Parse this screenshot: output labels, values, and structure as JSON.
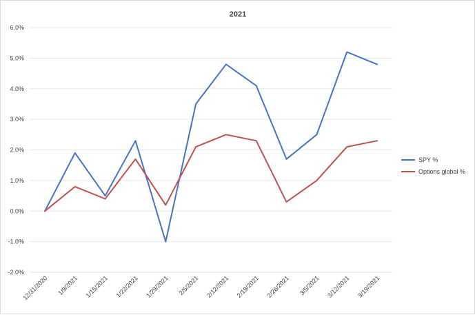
{
  "chart_data": {
    "type": "line",
    "title": "2021",
    "xlabel": "",
    "ylabel": "",
    "categories": [
      "12/31/2020",
      "1/9/2021",
      "1/15/2021",
      "1/22/2021",
      "1/29/2021",
      "2/5/2021",
      "2/12/2021",
      "2/19/2021",
      "2/26/2021",
      "3/5/2021",
      "3/12/2021",
      "3/19/2021"
    ],
    "y_ticks": [
      "-2.0%",
      "-1.0%",
      "0.0%",
      "1.0%",
      "2.0%",
      "3.0%",
      "4.0%",
      "5.0%",
      "6.0%"
    ],
    "ylim": [
      -2.0,
      6.0
    ],
    "y_unit": "%",
    "grid": true,
    "legend_position": "right",
    "series": [
      {
        "name": "SPY %",
        "color": "#4472C4",
        "values": [
          0.0,
          1.9,
          0.5,
          2.3,
          -1.0,
          3.5,
          4.8,
          4.1,
          1.7,
          2.5,
          5.2,
          4.8
        ]
      },
      {
        "name": "Options global %",
        "color": "#C0504D",
        "values": [
          0.0,
          0.8,
          0.4,
          1.7,
          0.2,
          2.1,
          2.5,
          2.3,
          0.3,
          1.0,
          2.1,
          2.3
        ]
      }
    ]
  }
}
